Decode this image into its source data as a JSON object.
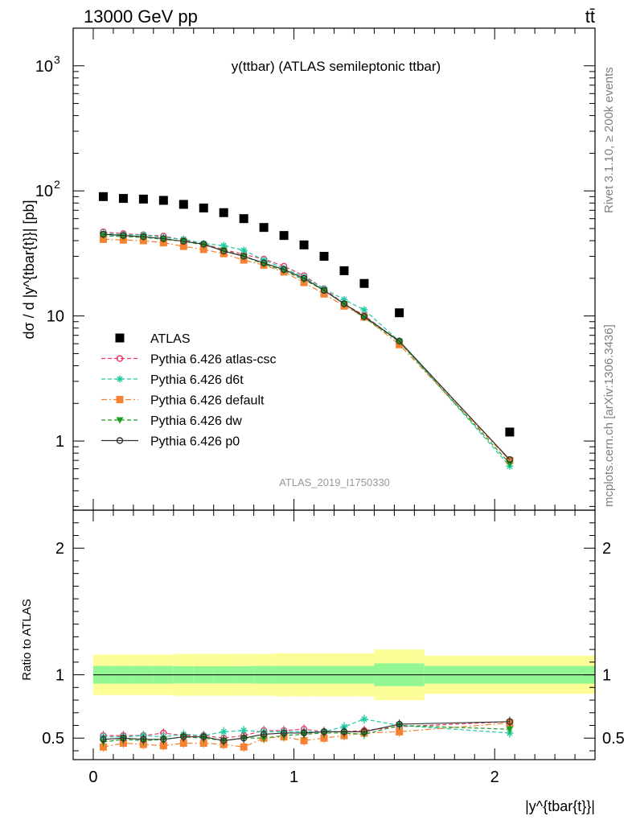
{
  "header": {
    "left_label": "13000 GeV pp",
    "right_label": "tt̄",
    "side_label_top": "Rivet 3.1.10, ≥ 200k events",
    "side_label_bottom": "mcplots.cern.ch [arXiv:1306.3436]",
    "analysis_id": "ATLAS_2019_I1750330"
  },
  "chart_data": [
    {
      "type": "scatter",
      "title": "y(ttbar) (ATLAS semileptonic ttbar)",
      "ylabel": "dσ / d |y^{tbar{t}}| [pb]",
      "yscale": "log",
      "ylim": [
        0.28,
        2000
      ],
      "xlim": [
        -0.1,
        2.5
      ],
      "ytick_labels": [
        {
          "value": 1,
          "label": "1"
        },
        {
          "value": 10,
          "label": "10"
        },
        {
          "value": 100,
          "label": "10",
          "sup": "2"
        },
        {
          "value": 1000,
          "label": "10",
          "sup": "3"
        }
      ],
      "x": [
        0.05,
        0.15,
        0.25,
        0.35,
        0.45,
        0.55,
        0.65,
        0.75,
        0.85,
        0.95,
        1.05,
        1.15,
        1.25,
        1.35,
        1.525,
        2.075
      ],
      "series": [
        {
          "name": "ATLAS",
          "color": "#000000",
          "marker": "square",
          "line": "none",
          "values": [
            90,
            87,
            86,
            84,
            78,
            73,
            67,
            60,
            51,
            44,
            37,
            30,
            23,
            18.2,
            10.6,
            1.18
          ]
        },
        {
          "name": "Pythia 6.426 atlas-csc",
          "color": "#e8385f",
          "marker": "open-circle",
          "line": "dashed",
          "values": [
            47,
            45.5,
            44.5,
            43.5,
            40.5,
            37.5,
            34,
            31,
            28.5,
            25,
            21,
            16.5,
            12.5,
            10.1,
            6.2,
            0.71
          ]
        },
        {
          "name": "Pythia 6.426 d6t",
          "color": "#1ec8a0",
          "marker": "star",
          "line": "dashed",
          "values": [
            46,
            44.5,
            44.5,
            42.5,
            41,
            38,
            36.5,
            33.5,
            28,
            24,
            20.5,
            16.5,
            13.5,
            11.2,
            6.3,
            0.63
          ]
        },
        {
          "name": "Pythia 6.426 default",
          "color": "#f58230",
          "marker": "square",
          "line": "dashdot",
          "values": [
            41,
            40.5,
            40,
            38.5,
            36,
            34,
            31.5,
            28,
            25.5,
            22.5,
            18.5,
            15,
            12,
            9.8,
            5.9,
            0.7
          ]
        },
        {
          "name": "Pythia 6.426 dw",
          "color": "#1f9e1f",
          "marker": "triangle-down",
          "line": "dashed",
          "values": [
            44,
            43,
            42.5,
            41,
            39.5,
            37,
            33.5,
            30,
            26,
            23,
            19.5,
            16,
            12.5,
            9.7,
            6.2,
            0.66
          ]
        },
        {
          "name": "Pythia 6.426 p0",
          "color": "#333333",
          "marker": "open-circle",
          "line": "solid",
          "values": [
            45,
            44,
            43,
            41.5,
            39.5,
            37.5,
            33,
            30,
            26.5,
            23.5,
            20,
            16,
            12.5,
            9.9,
            6.3,
            0.71
          ]
        }
      ]
    },
    {
      "type": "line",
      "ylabel": "Ratio to ATLAS",
      "xlabel": "|y^{tbar{t}}|",
      "ylim": [
        0.33,
        2.3
      ],
      "xlim": [
        -0.1,
        2.5
      ],
      "yticks": [
        0.5,
        1,
        2
      ],
      "ytick_labels": [
        "0.5",
        "1",
        "2"
      ],
      "xticks": [
        0,
        1,
        2
      ],
      "xtick_labels": [
        "0",
        "1",
        "2"
      ],
      "bin_edges": [
        0,
        0.1,
        0.2,
        0.3,
        0.4,
        0.5,
        0.6,
        0.7,
        0.8,
        0.9,
        1.0,
        1.1,
        1.2,
        1.3,
        1.4,
        1.65,
        2.5
      ],
      "band_inner": [
        0.07,
        0.07,
        0.07,
        0.07,
        0.068,
        0.068,
        0.068,
        0.068,
        0.07,
        0.07,
        0.07,
        0.07,
        0.07,
        0.07,
        0.09,
        0.07
      ],
      "band_outer": [
        0.16,
        0.16,
        0.16,
        0.16,
        0.165,
        0.165,
        0.165,
        0.165,
        0.165,
        0.17,
        0.17,
        0.17,
        0.17,
        0.17,
        0.2,
        0.15
      ],
      "band_colors": {
        "inner": "#92f692",
        "outer": "#fdfd98"
      },
      "x": [
        0.05,
        0.15,
        0.25,
        0.35,
        0.45,
        0.55,
        0.65,
        0.75,
        0.85,
        0.95,
        1.05,
        1.15,
        1.25,
        1.35,
        1.525,
        2.075
      ],
      "series": [
        {
          "name": "Pythia 6.426 atlas-csc",
          "color": "#e8385f",
          "marker": "open-circle",
          "line": "dashed",
          "values": [
            0.52,
            0.52,
            0.52,
            0.54,
            0.52,
            0.52,
            0.5,
            0.52,
            0.56,
            0.56,
            0.57,
            0.55,
            0.55,
            0.56,
            0.59,
            0.63
          ]
        },
        {
          "name": "Pythia 6.426 d6t",
          "color": "#1ec8a0",
          "marker": "star",
          "line": "dashed",
          "values": [
            0.51,
            0.51,
            0.52,
            0.51,
            0.53,
            0.52,
            0.55,
            0.56,
            0.55,
            0.55,
            0.55,
            0.55,
            0.59,
            0.65,
            0.6,
            0.54
          ]
        },
        {
          "name": "Pythia 6.426 default",
          "color": "#f58230",
          "marker": "square",
          "line": "dashdot",
          "values": [
            0.43,
            0.46,
            0.45,
            0.44,
            0.46,
            0.46,
            0.45,
            0.43,
            0.5,
            0.51,
            0.48,
            0.5,
            0.52,
            0.54,
            0.55,
            0.62
          ]
        },
        {
          "name": "Pythia 6.426 dw",
          "color": "#1f9e1f",
          "marker": "triangle-down",
          "line": "dashed",
          "values": [
            0.47,
            0.49,
            0.48,
            0.49,
            0.51,
            0.5,
            0.48,
            0.5,
            0.5,
            0.52,
            0.53,
            0.54,
            0.54,
            0.53,
            0.6,
            0.57
          ]
        },
        {
          "name": "Pythia 6.426 p0",
          "color": "#333333",
          "marker": "open-circle",
          "line": "solid",
          "values": [
            0.49,
            0.5,
            0.49,
            0.49,
            0.51,
            0.51,
            0.48,
            0.5,
            0.53,
            0.54,
            0.54,
            0.55,
            0.55,
            0.55,
            0.61,
            0.63
          ]
        }
      ]
    }
  ]
}
